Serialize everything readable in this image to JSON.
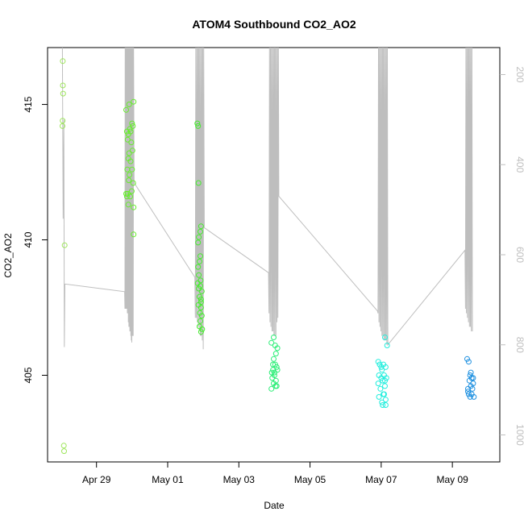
{
  "chart_data": {
    "type": "scatter",
    "title": "ATOM4 Southbound CO2_AO2",
    "xlabel": "Date",
    "ylabel": "CO2_AO2",
    "x_ticks": [
      "Apr 29",
      "May 01",
      "May 03",
      "May 05",
      "May 07",
      "May 09"
    ],
    "y_ticks": [
      405,
      410,
      415
    ],
    "y2_ticks": [
      200,
      400,
      600,
      800,
      1000
    ],
    "xlim": [
      "2016-04-27T15:00",
      "2016-05-10T08:00"
    ],
    "ylim": [
      401.8,
      417.1
    ],
    "y2lim": [
      1060,
      140
    ],
    "colors": {
      "altitude_line": "#bebebe",
      "axis": "#000000",
      "secondary_axis": "#bebebe"
    },
    "series": [
      {
        "color": "#9ee65c",
        "points": [
          [
            "2016-04-28T01:15",
            416.6
          ],
          [
            "2016-04-28T01:20",
            415.7
          ],
          [
            "2016-04-28T01:30",
            415.4
          ],
          [
            "2016-04-28T01:10",
            414.4
          ],
          [
            "2016-04-28T01:05",
            414.2
          ],
          [
            "2016-04-28T02:30",
            409.8
          ],
          [
            "2016-04-28T02:00",
            402.4
          ],
          [
            "2016-04-28T02:10",
            402.2
          ]
        ]
      },
      {
        "color": "#66ee2c",
        "points": [
          [
            "2016-04-29T20:00",
            414.8
          ],
          [
            "2016-04-29T22:00",
            415.0
          ],
          [
            "2016-04-30T01:00",
            415.1
          ],
          [
            "2016-04-29T20:30",
            414.0
          ],
          [
            "2016-04-29T21:30",
            413.9
          ],
          [
            "2016-04-29T22:30",
            414.1
          ],
          [
            "2016-04-29T23:00",
            414.0
          ],
          [
            "2016-04-30T00:00",
            414.3
          ],
          [
            "2016-04-30T00:30",
            414.2
          ],
          [
            "2016-04-29T21:00",
            413.7
          ],
          [
            "2016-04-29T23:30",
            413.6
          ],
          [
            "2016-04-30T00:15",
            413.3
          ],
          [
            "2016-04-29T22:00",
            413.2
          ],
          [
            "2016-04-29T21:30",
            413.0
          ],
          [
            "2016-04-29T23:00",
            412.9
          ],
          [
            "2016-04-29T20:45",
            412.6
          ],
          [
            "2016-04-30T00:00",
            412.6
          ],
          [
            "2016-04-29T22:15",
            412.4
          ],
          [
            "2016-04-29T21:45",
            412.2
          ],
          [
            "2016-04-30T00:45",
            412.1
          ],
          [
            "2016-04-29T20:00",
            411.7
          ],
          [
            "2016-04-29T20:30",
            411.6
          ],
          [
            "2016-04-29T21:00",
            411.7
          ],
          [
            "2016-04-29T22:45",
            411.6
          ],
          [
            "2016-04-29T23:45",
            411.8
          ],
          [
            "2016-04-29T21:30",
            411.3
          ],
          [
            "2016-04-30T01:00",
            411.2
          ],
          [
            "2016-04-30T01:00",
            410.2
          ]
        ]
      },
      {
        "color": "#44ee2c",
        "points": [
          [
            "2016-05-01T20:00",
            414.3
          ],
          [
            "2016-05-01T20:30",
            414.2
          ],
          [
            "2016-05-01T20:45",
            412.1
          ],
          [
            "2016-05-01T22:30",
            410.5
          ],
          [
            "2016-05-01T22:00",
            410.3
          ],
          [
            "2016-05-01T21:00",
            410.1
          ],
          [
            "2016-05-01T20:30",
            409.9
          ],
          [
            "2016-05-01T22:00",
            409.4
          ],
          [
            "2016-05-01T21:30",
            409.2
          ],
          [
            "2016-05-01T20:30",
            409.0
          ],
          [
            "2016-05-01T21:00",
            408.7
          ],
          [
            "2016-05-01T22:15",
            408.5
          ],
          [
            "2016-05-01T20:15",
            408.4
          ],
          [
            "2016-05-01T21:00",
            408.2
          ],
          [
            "2016-05-01T22:00",
            408.3
          ],
          [
            "2016-05-01T23:00",
            408.1
          ],
          [
            "2016-05-01T21:30",
            407.9
          ],
          [
            "2016-05-01T22:30",
            407.8
          ],
          [
            "2016-05-01T20:45",
            407.6
          ],
          [
            "2016-05-01T22:30",
            407.5
          ],
          [
            "2016-05-01T21:45",
            407.3
          ],
          [
            "2016-05-01T23:00",
            407.2
          ],
          [
            "2016-05-01T22:00",
            407.0
          ],
          [
            "2016-05-01T23:15",
            406.7
          ],
          [
            "2016-05-01T22:30",
            406.6
          ],
          [
            "2016-05-01T21:30",
            406.8
          ],
          [
            "2016-05-01T22:30",
            407.7
          ]
        ]
      },
      {
        "color": "#2cee77",
        "points": [
          [
            "2016-05-03T22:00",
            406.2
          ],
          [
            "2016-05-03T23:30",
            406.4
          ],
          [
            "2016-05-04T00:30",
            406.1
          ],
          [
            "2016-05-04T02:00",
            406.0
          ],
          [
            "2016-05-04T01:00",
            405.8
          ],
          [
            "2016-05-03T23:30",
            405.6
          ],
          [
            "2016-05-04T00:30",
            405.4
          ],
          [
            "2016-05-03T23:00",
            405.2
          ],
          [
            "2016-05-04T01:30",
            405.3
          ],
          [
            "2016-05-03T22:15",
            405.1
          ],
          [
            "2016-05-04T00:00",
            405.0
          ],
          [
            "2016-05-04T02:00",
            405.2
          ],
          [
            "2016-05-03T22:30",
            404.9
          ],
          [
            "2016-05-04T01:00",
            404.8
          ],
          [
            "2016-05-03T23:30",
            404.7
          ],
          [
            "2016-05-04T00:45",
            404.6
          ],
          [
            "2016-05-03T22:00",
            404.5
          ],
          [
            "2016-05-04T01:30",
            404.6
          ],
          [
            "2016-05-03T23:00",
            405.4
          ],
          [
            "2016-05-04T00:00",
            405.1
          ]
        ]
      },
      {
        "color": "#22eedd",
        "points": [
          [
            "2016-05-07T02:30",
            406.4
          ],
          [
            "2016-05-07T04:00",
            406.1
          ],
          [
            "2016-05-06T22:00",
            405.5
          ],
          [
            "2016-05-06T23:00",
            405.4
          ],
          [
            "2016-05-07T01:30",
            405.4
          ],
          [
            "2016-05-07T03:00",
            405.3
          ],
          [
            "2016-05-07T00:30",
            405.2
          ],
          [
            "2016-05-06T22:30",
            405.0
          ],
          [
            "2016-05-07T02:00",
            405.0
          ],
          [
            "2016-05-07T00:00",
            404.9
          ],
          [
            "2016-05-07T01:00",
            404.8
          ],
          [
            "2016-05-07T03:30",
            404.9
          ],
          [
            "2016-05-06T22:00",
            404.7
          ],
          [
            "2016-05-07T02:30",
            404.6
          ],
          [
            "2016-05-06T23:30",
            404.5
          ],
          [
            "2016-05-07T01:30",
            404.3
          ],
          [
            "2016-05-06T22:30",
            404.2
          ],
          [
            "2016-05-07T03:00",
            404.1
          ],
          [
            "2016-05-07T00:30",
            404.0
          ],
          [
            "2016-05-07T02:00",
            404.3
          ],
          [
            "2016-05-07T03:00",
            403.9
          ],
          [
            "2016-05-07T01:00",
            403.9
          ],
          [
            "2016-05-07T00:00",
            405.3
          ],
          [
            "2016-05-07T02:30",
            404.8
          ]
        ]
      },
      {
        "color": "#1e90e0",
        "points": [
          [
            "2016-05-09T10:00",
            405.6
          ],
          [
            "2016-05-09T11:00",
            405.5
          ],
          [
            "2016-05-09T12:00",
            405.0
          ],
          [
            "2016-05-09T13:00",
            404.9
          ],
          [
            "2016-05-09T11:30",
            404.8
          ],
          [
            "2016-05-09T14:00",
            404.9
          ],
          [
            "2016-05-09T12:30",
            404.6
          ],
          [
            "2016-05-09T10:30",
            404.5
          ],
          [
            "2016-05-09T13:30",
            404.5
          ],
          [
            "2016-05-09T11:00",
            404.3
          ],
          [
            "2016-05-09T12:00",
            404.2
          ],
          [
            "2016-05-09T14:30",
            404.2
          ],
          [
            "2016-05-09T13:00",
            404.3
          ],
          [
            "2016-05-09T10:30",
            404.4
          ],
          [
            "2016-05-09T12:30",
            405.1
          ],
          [
            "2016-05-09T14:00",
            404.7
          ]
        ]
      }
    ],
    "altitude_series": [
      [
        "2016-04-28T01:00",
        140
      ],
      [
        "2016-04-28T01:30",
        520
      ],
      [
        "2016-04-28T02:00",
        300
      ],
      [
        "2016-04-28T02:20",
        805
      ],
      [
        "2016-04-28T02:40",
        665
      ],
      [
        "2016-04-29T19:00",
        682
      ],
      [
        "2016-04-29T19:10",
        720
      ],
      [
        "2016-04-29T19:20",
        140
      ],
      [
        "2016-04-29T19:30",
        720
      ],
      [
        "2016-04-29T19:40",
        140
      ],
      [
        "2016-04-29T19:50",
        720
      ],
      [
        "2016-04-29T20:00",
        140
      ],
      [
        "2016-04-29T20:10",
        720
      ],
      [
        "2016-04-29T20:20",
        140
      ],
      [
        "2016-04-29T20:30",
        720
      ],
      [
        "2016-04-29T20:40",
        140
      ],
      [
        "2016-04-29T20:50",
        730
      ],
      [
        "2016-04-29T21:00",
        140
      ],
      [
        "2016-04-29T21:10",
        730
      ],
      [
        "2016-04-29T21:20",
        140
      ],
      [
        "2016-04-29T21:30",
        750
      ],
      [
        "2016-04-29T21:40",
        140
      ],
      [
        "2016-04-29T21:50",
        760
      ],
      [
        "2016-04-29T22:00",
        140
      ],
      [
        "2016-04-29T22:10",
        760
      ],
      [
        "2016-04-29T22:20",
        140
      ],
      [
        "2016-04-29T22:30",
        770
      ],
      [
        "2016-04-29T22:40",
        140
      ],
      [
        "2016-04-29T22:50",
        770
      ],
      [
        "2016-04-29T23:00",
        140
      ],
      [
        "2016-04-29T23:10",
        780
      ],
      [
        "2016-04-29T23:20",
        140
      ],
      [
        "2016-04-29T23:30",
        790
      ],
      [
        "2016-04-29T23:40",
        140
      ],
      [
        "2016-04-29T23:50",
        795
      ],
      [
        "2016-04-30T00:00",
        140
      ],
      [
        "2016-04-30T00:15",
        780
      ],
      [
        "2016-04-30T00:30",
        140
      ],
      [
        "2016-04-30T00:45",
        780
      ],
      [
        "2016-04-30T01:00",
        140
      ],
      [
        "2016-04-30T01:20",
        440
      ],
      [
        "2016-05-01T18:20",
        650
      ],
      [
        "2016-05-01T18:40",
        740
      ],
      [
        "2016-05-01T19:00",
        140
      ],
      [
        "2016-05-01T19:20",
        740
      ],
      [
        "2016-05-01T19:40",
        140
      ],
      [
        "2016-05-01T20:00",
        750
      ],
      [
        "2016-05-01T20:20",
        140
      ],
      [
        "2016-05-01T20:40",
        760
      ],
      [
        "2016-05-01T21:00",
        140
      ],
      [
        "2016-05-01T21:20",
        770
      ],
      [
        "2016-05-01T21:40",
        140
      ],
      [
        "2016-05-01T22:00",
        780
      ],
      [
        "2016-05-01T22:20",
        140
      ],
      [
        "2016-05-01T22:40",
        780
      ],
      [
        "2016-05-01T23:00",
        140
      ],
      [
        "2016-05-01T23:20",
        790
      ],
      [
        "2016-05-01T23:40",
        140
      ],
      [
        "2016-05-02T00:00",
        810
      ],
      [
        "2016-05-02T00:20",
        140
      ],
      [
        "2016-05-02T00:40",
        540
      ],
      [
        "2016-05-03T20:00",
        640
      ],
      [
        "2016-05-03T20:20",
        730
      ],
      [
        "2016-05-03T20:40",
        140
      ],
      [
        "2016-05-03T21:00",
        750
      ],
      [
        "2016-05-03T21:20",
        140
      ],
      [
        "2016-05-03T21:40",
        760
      ],
      [
        "2016-05-03T22:00",
        140
      ],
      [
        "2016-05-03T22:20",
        770
      ],
      [
        "2016-05-03T22:40",
        140
      ],
      [
        "2016-05-03T23:00",
        770
      ],
      [
        "2016-05-03T23:20",
        140
      ],
      [
        "2016-05-03T23:40",
        780
      ],
      [
        "2016-05-04T00:00",
        140
      ],
      [
        "2016-05-04T00:20",
        780
      ],
      [
        "2016-05-04T00:40",
        140
      ],
      [
        "2016-05-04T01:00",
        780
      ],
      [
        "2016-05-04T01:20",
        140
      ],
      [
        "2016-05-04T01:40",
        750
      ],
      [
        "2016-05-04T02:00",
        140
      ],
      [
        "2016-05-04T02:20",
        740
      ],
      [
        "2016-05-04T02:40",
        140
      ],
      [
        "2016-05-04T03:00",
        470
      ],
      [
        "2016-05-06T21:30",
        725
      ],
      [
        "2016-05-06T21:50",
        730
      ],
      [
        "2016-05-06T22:10",
        140
      ],
      [
        "2016-05-06T22:30",
        750
      ],
      [
        "2016-05-06T22:50",
        140
      ],
      [
        "2016-05-06T23:10",
        760
      ],
      [
        "2016-05-06T23:30",
        140
      ],
      [
        "2016-05-06T23:50",
        770
      ],
      [
        "2016-05-07T00:10",
        140
      ],
      [
        "2016-05-07T00:30",
        780
      ],
      [
        "2016-05-07T00:50",
        140
      ],
      [
        "2016-05-07T01:10",
        780
      ],
      [
        "2016-05-07T01:30",
        140
      ],
      [
        "2016-05-07T01:50",
        790
      ],
      [
        "2016-05-07T02:10",
        140
      ],
      [
        "2016-05-07T02:30",
        790
      ],
      [
        "2016-05-07T02:50",
        140
      ],
      [
        "2016-05-07T03:10",
        790
      ],
      [
        "2016-05-07T03:30",
        140
      ],
      [
        "2016-05-07T03:50",
        800
      ],
      [
        "2016-05-07T04:10",
        140
      ],
      [
        "2016-05-07T04:30",
        800
      ],
      [
        "2016-05-09T08:30",
        590
      ],
      [
        "2016-05-09T08:50",
        720
      ],
      [
        "2016-05-09T09:10",
        140
      ],
      [
        "2016-05-09T09:30",
        730
      ],
      [
        "2016-05-09T09:50",
        140
      ],
      [
        "2016-05-09T10:10",
        740
      ],
      [
        "2016-05-09T10:30",
        140
      ],
      [
        "2016-05-09T10:50",
        750
      ],
      [
        "2016-05-09T11:10",
        140
      ],
      [
        "2016-05-09T11:30",
        760
      ],
      [
        "2016-05-09T11:50",
        140
      ],
      [
        "2016-05-09T12:10",
        760
      ],
      [
        "2016-05-09T12:30",
        140
      ],
      [
        "2016-05-09T12:50",
        770
      ],
      [
        "2016-05-09T13:10",
        140
      ],
      [
        "2016-05-09T13:30",
        770
      ]
    ]
  }
}
